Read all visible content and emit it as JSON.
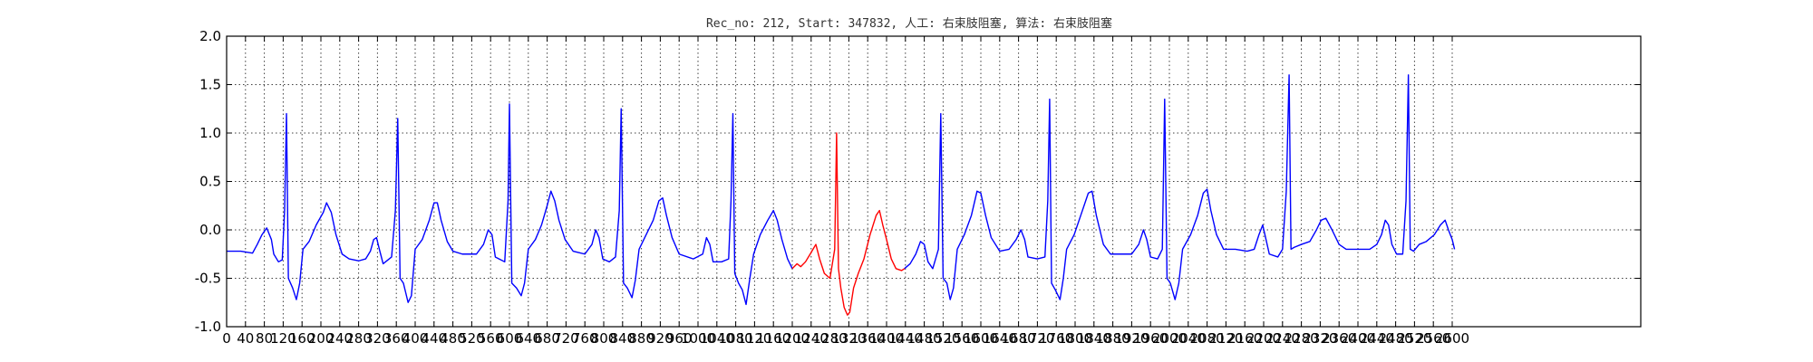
{
  "chart_data": {
    "type": "line",
    "title": "Rec_no: 212, Start: 347832, 人工: 右束肢阻塞, 算法: 右束肢阻塞",
    "xlabel": "",
    "ylabel": "",
    "xlim": [
      0,
      3000
    ],
    "ylim": [
      -1.0,
      2.0
    ],
    "grid": true,
    "xticks": [
      0,
      40,
      80,
      120,
      160,
      200,
      240,
      280,
      320,
      360,
      400,
      440,
      480,
      520,
      560,
      600,
      640,
      680,
      720,
      760,
      800,
      840,
      880,
      920,
      960,
      1000,
      1040,
      1080,
      1120,
      1160,
      1200,
      1240,
      1280,
      1320,
      1360,
      1400,
      1440,
      1480,
      1520,
      1560,
      1600,
      1640,
      1680,
      1720,
      1760,
      1800,
      1840,
      1880,
      1920,
      1960,
      2000,
      2040,
      2080,
      2120,
      2160,
      2200,
      2240,
      2280,
      2320,
      2360,
      2400,
      2440,
      2480,
      2520,
      2560,
      2600
    ],
    "yticks": [
      "2.0",
      "1.5",
      "1.0",
      "0.5",
      "0.0",
      "-0.5",
      "-1.0"
    ],
    "ytick_values": [
      2.0,
      1.5,
      1.0,
      0.5,
      0.0,
      -0.5,
      -1.0
    ],
    "series": [
      {
        "color": "#0000ff",
        "segments": [
          [
            [
              0,
              -0.22
            ],
            [
              30,
              -0.22
            ],
            [
              55,
              -0.24
            ],
            [
              65,
              -0.15
            ],
            [
              75,
              -0.05
            ],
            [
              85,
              0.02
            ],
            [
              95,
              -0.1
            ],
            [
              100,
              -0.25
            ],
            [
              110,
              -0.33
            ],
            [
              118,
              -0.31
            ],
            [
              123,
              0.2
            ],
            [
              127,
              1.2
            ],
            [
              131,
              -0.5
            ],
            [
              140,
              -0.6
            ],
            [
              148,
              -0.72
            ],
            [
              155,
              -0.55
            ],
            [
              162,
              -0.2
            ],
            [
              175,
              -0.12
            ],
            [
              190,
              0.05
            ],
            [
              205,
              0.18
            ],
            [
              212,
              0.28
            ],
            [
              222,
              0.18
            ],
            [
              232,
              -0.05
            ],
            [
              245,
              -0.25
            ],
            [
              260,
              -0.3
            ],
            [
              280,
              -0.32
            ],
            [
              295,
              -0.3
            ],
            [
              305,
              -0.22
            ],
            [
              312,
              -0.1
            ],
            [
              318,
              -0.08
            ],
            [
              324,
              -0.2
            ],
            [
              332,
              -0.35
            ],
            [
              350,
              -0.28
            ],
            [
              358,
              0.2
            ],
            [
              363,
              1.15
            ],
            [
              368,
              -0.5
            ],
            [
              375,
              -0.55
            ],
            [
              385,
              -0.75
            ],
            [
              392,
              -0.68
            ],
            [
              400,
              -0.2
            ],
            [
              415,
              -0.1
            ],
            [
              430,
              0.1
            ],
            [
              440,
              0.28
            ],
            [
              447,
              0.28
            ],
            [
              455,
              0.1
            ],
            [
              468,
              -0.12
            ],
            [
              480,
              -0.22
            ],
            [
              500,
              -0.25
            ],
            [
              530,
              -0.25
            ],
            [
              545,
              -0.15
            ],
            [
              555,
              0.0
            ],
            [
              563,
              -0.05
            ],
            [
              570,
              -0.28
            ],
            [
              578,
              -0.3
            ],
            [
              590,
              -0.33
            ],
            [
              597,
              0.3
            ],
            [
              600,
              1.3
            ],
            [
              605,
              -0.55
            ],
            [
              615,
              -0.6
            ],
            [
              625,
              -0.68
            ],
            [
              632,
              -0.55
            ],
            [
              640,
              -0.2
            ],
            [
              655,
              -0.1
            ],
            [
              668,
              0.05
            ],
            [
              680,
              0.25
            ],
            [
              688,
              0.4
            ],
            [
              696,
              0.3
            ],
            [
              705,
              0.1
            ],
            [
              718,
              -0.1
            ],
            [
              735,
              -0.22
            ],
            [
              760,
              -0.25
            ],
            [
              775,
              -0.15
            ],
            [
              783,
              0.0
            ],
            [
              790,
              -0.08
            ],
            [
              798,
              -0.3
            ],
            [
              812,
              -0.33
            ],
            [
              825,
              -0.28
            ],
            [
              833,
              0.2
            ],
            [
              837,
              1.25
            ],
            [
              842,
              -0.55
            ],
            [
              850,
              -0.6
            ],
            [
              860,
              -0.7
            ],
            [
              867,
              -0.52
            ],
            [
              875,
              -0.2
            ],
            [
              890,
              -0.05
            ],
            [
              905,
              0.1
            ],
            [
              917,
              0.3
            ],
            [
              925,
              0.33
            ],
            [
              933,
              0.15
            ],
            [
              945,
              -0.08
            ],
            [
              960,
              -0.25
            ],
            [
              990,
              -0.3
            ],
            [
              1010,
              -0.25
            ],
            [
              1018,
              -0.08
            ],
            [
              1025,
              -0.15
            ],
            [
              1032,
              -0.33
            ],
            [
              1050,
              -0.33
            ],
            [
              1065,
              -0.3
            ],
            [
              1070,
              0.3
            ],
            [
              1074,
              1.2
            ],
            [
              1078,
              -0.45
            ],
            [
              1086,
              -0.55
            ],
            [
              1094,
              -0.62
            ],
            [
              1102,
              -0.77
            ],
            [
              1110,
              -0.5
            ],
            [
              1118,
              -0.25
            ],
            [
              1132,
              -0.05
            ],
            [
              1148,
              0.1
            ],
            [
              1160,
              0.2
            ],
            [
              1168,
              0.1
            ],
            [
              1178,
              -0.1
            ],
            [
              1190,
              -0.3
            ],
            [
              1200,
              -0.4
            ]
          ],
          [
            [
              1438,
              -0.4
            ],
            [
              1450,
              -0.35
            ],
            [
              1462,
              -0.25
            ],
            [
              1472,
              -0.12
            ],
            [
              1480,
              -0.15
            ],
            [
              1488,
              -0.33
            ],
            [
              1498,
              -0.4
            ],
            [
              1510,
              -0.2
            ],
            [
              1515,
              1.2
            ],
            [
              1520,
              -0.5
            ],
            [
              1528,
              -0.55
            ],
            [
              1535,
              -0.72
            ],
            [
              1542,
              -0.6
            ],
            [
              1550,
              -0.2
            ],
            [
              1565,
              -0.05
            ],
            [
              1580,
              0.15
            ],
            [
              1592,
              0.4
            ],
            [
              1600,
              0.38
            ],
            [
              1610,
              0.15
            ],
            [
              1622,
              -0.08
            ],
            [
              1640,
              -0.22
            ],
            [
              1660,
              -0.2
            ],
            [
              1675,
              -0.1
            ],
            [
              1685,
              0.0
            ],
            [
              1693,
              -0.1
            ],
            [
              1700,
              -0.28
            ],
            [
              1720,
              -0.3
            ],
            [
              1736,
              -0.28
            ],
            [
              1742,
              0.3
            ],
            [
              1746,
              1.35
            ],
            [
              1750,
              -0.55
            ],
            [
              1758,
              -0.62
            ],
            [
              1768,
              -0.72
            ],
            [
              1775,
              -0.5
            ],
            [
              1782,
              -0.2
            ],
            [
              1798,
              -0.05
            ],
            [
              1812,
              0.15
            ],
            [
              1828,
              0.38
            ],
            [
              1836,
              0.4
            ],
            [
              1845,
              0.15
            ],
            [
              1860,
              -0.15
            ],
            [
              1875,
              -0.25
            ],
            [
              1900,
              -0.25
            ],
            [
              1920,
              -0.25
            ],
            [
              1935,
              -0.15
            ],
            [
              1945,
              0.0
            ],
            [
              1952,
              -0.1
            ],
            [
              1960,
              -0.28
            ],
            [
              1975,
              -0.3
            ],
            [
              1985,
              -0.2
            ],
            [
              1990,
              1.35
            ],
            [
              1995,
              -0.5
            ],
            [
              2002,
              -0.55
            ],
            [
              2012,
              -0.72
            ],
            [
              2020,
              -0.55
            ],
            [
              2028,
              -0.2
            ],
            [
              2045,
              -0.05
            ],
            [
              2060,
              0.15
            ],
            [
              2072,
              0.38
            ],
            [
              2080,
              0.42
            ],
            [
              2088,
              0.2
            ],
            [
              2100,
              -0.05
            ],
            [
              2115,
              -0.2
            ],
            [
              2140,
              -0.2
            ],
            [
              2165,
              -0.22
            ],
            [
              2180,
              -0.2
            ],
            [
              2190,
              -0.05
            ],
            [
              2198,
              0.05
            ],
            [
              2205,
              -0.1
            ],
            [
              2212,
              -0.25
            ],
            [
              2230,
              -0.28
            ],
            [
              2240,
              -0.2
            ],
            [
              2248,
              0.4
            ],
            [
              2254,
              1.6
            ],
            [
              2258,
              -0.2
            ],
            [
              2265,
              -0.18
            ],
            [
              2280,
              -0.15
            ],
            [
              2298,
              -0.12
            ],
            [
              2312,
              0.0
            ],
            [
              2322,
              0.1
            ],
            [
              2332,
              0.12
            ],
            [
              2345,
              0.0
            ],
            [
              2360,
              -0.15
            ],
            [
              2375,
              -0.2
            ],
            [
              2400,
              -0.2
            ],
            [
              2425,
              -0.2
            ],
            [
              2440,
              -0.15
            ],
            [
              2450,
              -0.05
            ],
            [
              2458,
              0.1
            ],
            [
              2465,
              0.05
            ],
            [
              2472,
              -0.15
            ],
            [
              2482,
              -0.25
            ],
            [
              2495,
              -0.25
            ],
            [
              2502,
              0.3
            ],
            [
              2507,
              1.6
            ],
            [
              2511,
              -0.2
            ],
            [
              2518,
              -0.22
            ],
            [
              2530,
              -0.15
            ],
            [
              2545,
              -0.12
            ],
            [
              2562,
              -0.05
            ],
            [
              2575,
              0.05
            ],
            [
              2585,
              0.1
            ],
            [
              2592,
              0.0
            ],
            [
              2600,
              -0.1
            ],
            [
              2605,
              -0.2
            ]
          ]
        ]
      },
      {
        "color": "#ff0000",
        "segments": [
          [
            [
              1200,
              -0.4
            ],
            [
              1210,
              -0.35
            ],
            [
              1218,
              -0.38
            ],
            [
              1228,
              -0.33
            ],
            [
              1238,
              -0.25
            ],
            [
              1244,
              -0.2
            ],
            [
              1250,
              -0.15
            ],
            [
              1258,
              -0.3
            ],
            [
              1268,
              -0.45
            ],
            [
              1280,
              -0.5
            ],
            [
              1285,
              -0.35
            ],
            [
              1290,
              -0.2
            ],
            [
              1294,
              1.0
            ],
            [
              1298,
              -0.4
            ],
            [
              1303,
              -0.6
            ],
            [
              1310,
              -0.8
            ],
            [
              1317,
              -0.88
            ],
            [
              1322,
              -0.85
            ],
            [
              1330,
              -0.6
            ],
            [
              1340,
              -0.45
            ],
            [
              1352,
              -0.3
            ],
            [
              1365,
              -0.05
            ],
            [
              1378,
              0.15
            ],
            [
              1385,
              0.2
            ],
            [
              1392,
              0.05
            ],
            [
              1400,
              -0.1
            ],
            [
              1410,
              -0.3
            ],
            [
              1420,
              -0.4
            ],
            [
              1432,
              -0.42
            ],
            [
              1438,
              -0.4
            ]
          ]
        ]
      }
    ]
  }
}
